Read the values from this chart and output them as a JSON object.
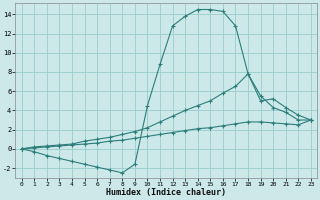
{
  "xlabel": "Humidex (Indice chaleur)",
  "background_color": "#cce8e8",
  "grid_color": "#99cccc",
  "line_color": "#2d7d7d",
  "xlim": [
    -0.5,
    23.5
  ],
  "ylim": [
    -3.0,
    15.2
  ],
  "yticks": [
    -2,
    0,
    2,
    4,
    6,
    8,
    10,
    12,
    14
  ],
  "xticks": [
    0,
    1,
    2,
    3,
    4,
    5,
    6,
    7,
    8,
    9,
    10,
    11,
    12,
    13,
    14,
    15,
    16,
    17,
    18,
    19,
    20,
    21,
    22,
    23
  ],
  "curve1_x": [
    0,
    1,
    2,
    3,
    4,
    5,
    6,
    7,
    8,
    9,
    10,
    11,
    12,
    13,
    14,
    15,
    16,
    17,
    18,
    19,
    20,
    21,
    22,
    23
  ],
  "curve1_y": [
    0.0,
    -0.3,
    -0.7,
    -1.0,
    -1.3,
    -1.6,
    -1.9,
    -2.2,
    -2.5,
    -1.6,
    4.5,
    8.8,
    12.8,
    13.8,
    14.5,
    14.5,
    14.3,
    12.8,
    7.8,
    5.5,
    4.3,
    3.8,
    3.0,
    3.0
  ],
  "curve2_x": [
    0,
    1,
    2,
    3,
    4,
    5,
    6,
    7,
    8,
    9,
    10,
    11,
    12,
    13,
    14,
    15,
    16,
    17,
    18,
    19,
    20,
    21,
    22,
    23
  ],
  "curve2_y": [
    0.0,
    0.2,
    0.3,
    0.4,
    0.5,
    0.8,
    1.0,
    1.2,
    1.5,
    1.8,
    2.2,
    2.8,
    3.4,
    4.0,
    4.5,
    5.0,
    5.8,
    6.5,
    7.8,
    5.0,
    5.2,
    4.3,
    3.5,
    3.0
  ],
  "curve3_x": [
    0,
    1,
    2,
    3,
    4,
    5,
    6,
    7,
    8,
    9,
    10,
    11,
    12,
    13,
    14,
    15,
    16,
    17,
    18,
    19,
    20,
    21,
    22,
    23
  ],
  "curve3_y": [
    0.0,
    0.1,
    0.2,
    0.3,
    0.4,
    0.5,
    0.6,
    0.8,
    0.9,
    1.1,
    1.3,
    1.5,
    1.7,
    1.9,
    2.1,
    2.2,
    2.4,
    2.6,
    2.8,
    2.8,
    2.7,
    2.6,
    2.5,
    3.0
  ]
}
